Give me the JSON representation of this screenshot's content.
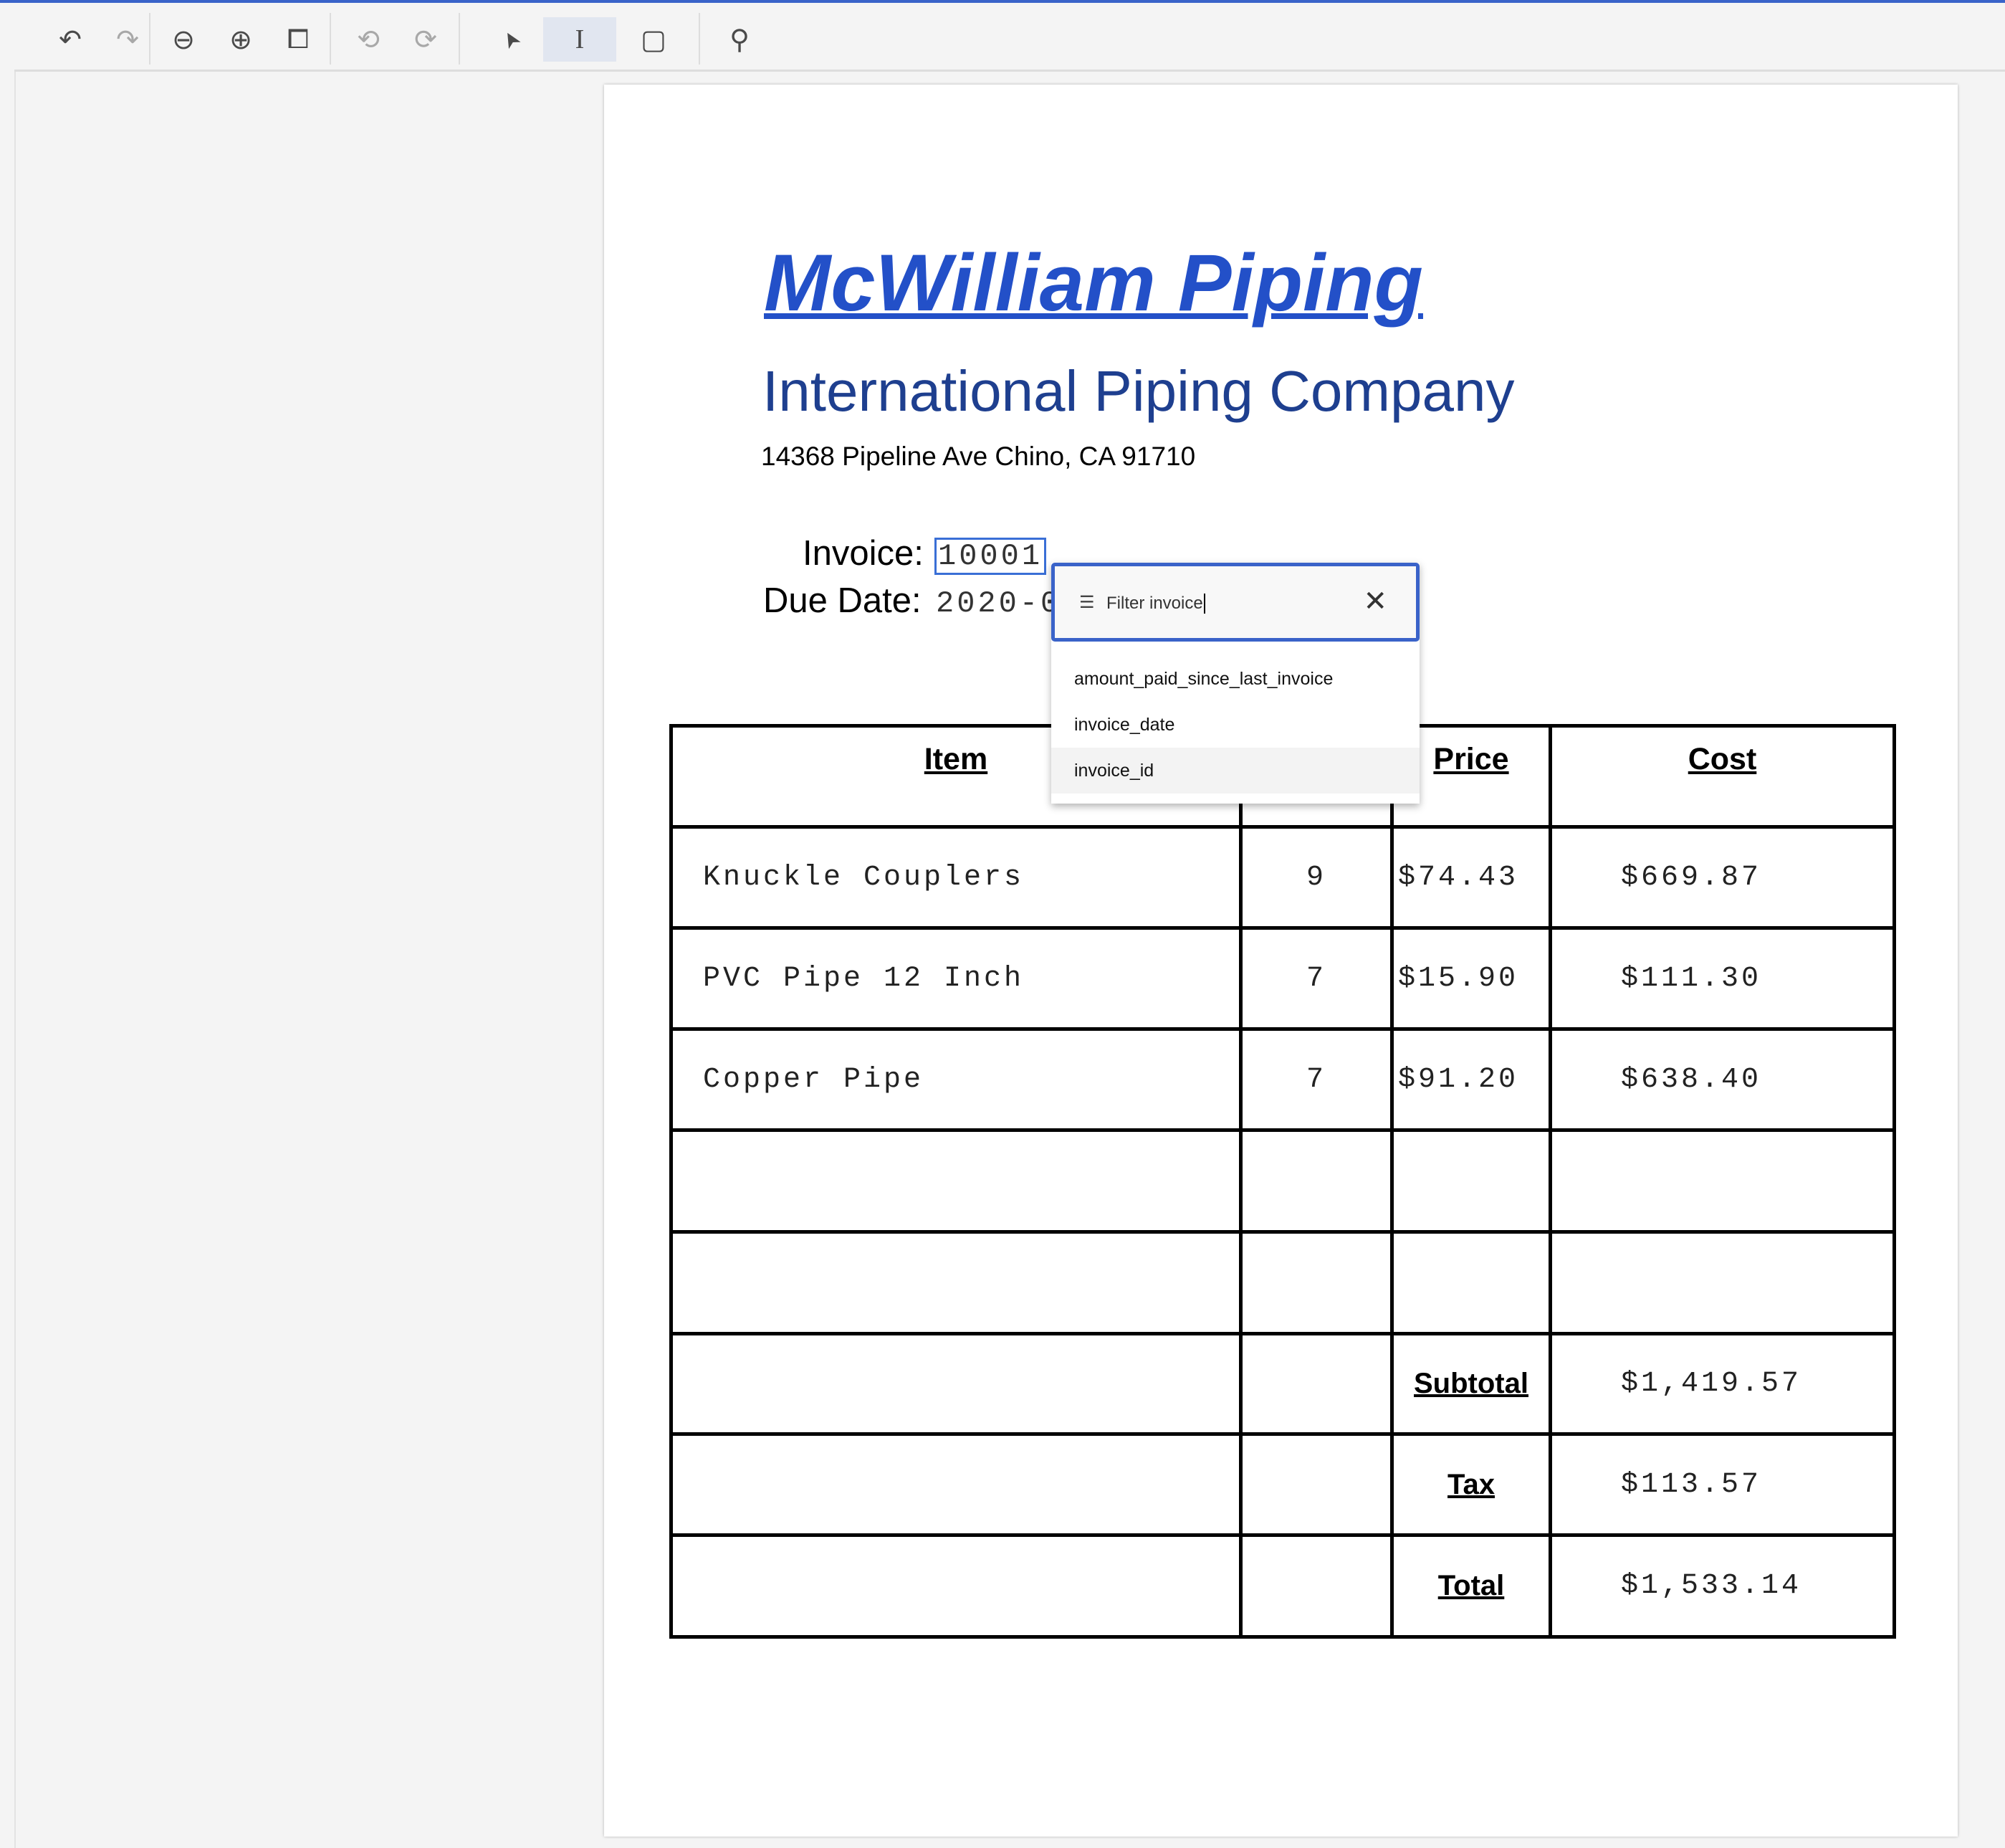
{
  "toolbar": {
    "items": [
      {
        "name": "undo-icon",
        "glyph": "↶"
      },
      {
        "name": "redo-icon",
        "glyph": "↷"
      },
      {
        "name": "zoom-out-icon",
        "glyph": "⊖"
      },
      {
        "name": "zoom-in-icon",
        "glyph": "⊕"
      },
      {
        "name": "fit-page-icon",
        "glyph": "⧠"
      },
      {
        "name": "rotate-left-icon",
        "glyph": "⟲"
      },
      {
        "name": "rotate-right-icon",
        "glyph": "⟳"
      },
      {
        "name": "pointer-icon",
        "glyph": "➤"
      },
      {
        "name": "text-cursor-icon",
        "glyph": "I"
      },
      {
        "name": "add-region-icon",
        "glyph": "▢"
      },
      {
        "name": "search-icon",
        "glyph": "⚲"
      }
    ]
  },
  "document": {
    "title": "McWilliam Piping",
    "subtitle": "International Piping Company",
    "address": "14368 Pipeline Ave Chino, CA 91710",
    "invoice_label": "Invoice:",
    "invoice_value": "10001",
    "due_label": "Due Date:",
    "due_value": "2020-0",
    "table": {
      "headers": [
        "Item",
        "",
        "Price",
        "Cost"
      ],
      "rows": [
        [
          "Knuckle Couplers",
          "9",
          "$74.43",
          "$669.87"
        ],
        [
          "PVC Pipe 12 Inch",
          "7",
          "$15.90",
          "$111.30"
        ],
        [
          "Copper Pipe",
          "7",
          "$91.20",
          "$638.40"
        ]
      ],
      "subtotal_label": "Subtotal",
      "subtotal": "$1,419.57",
      "tax_label": "Tax",
      "tax": "$113.57",
      "total_label": "Total",
      "total": "$1,533.14"
    }
  },
  "dropdown": {
    "filter_value": "Filter invoice",
    "options": [
      "amount_paid_since_last_invoice",
      "invoice_date",
      "invoice_id"
    ],
    "highlighted": "invoice_id"
  },
  "colors": {
    "accent": "#3a63c9",
    "title": "#2350c8",
    "subtitle": "#1e3f8f"
  }
}
